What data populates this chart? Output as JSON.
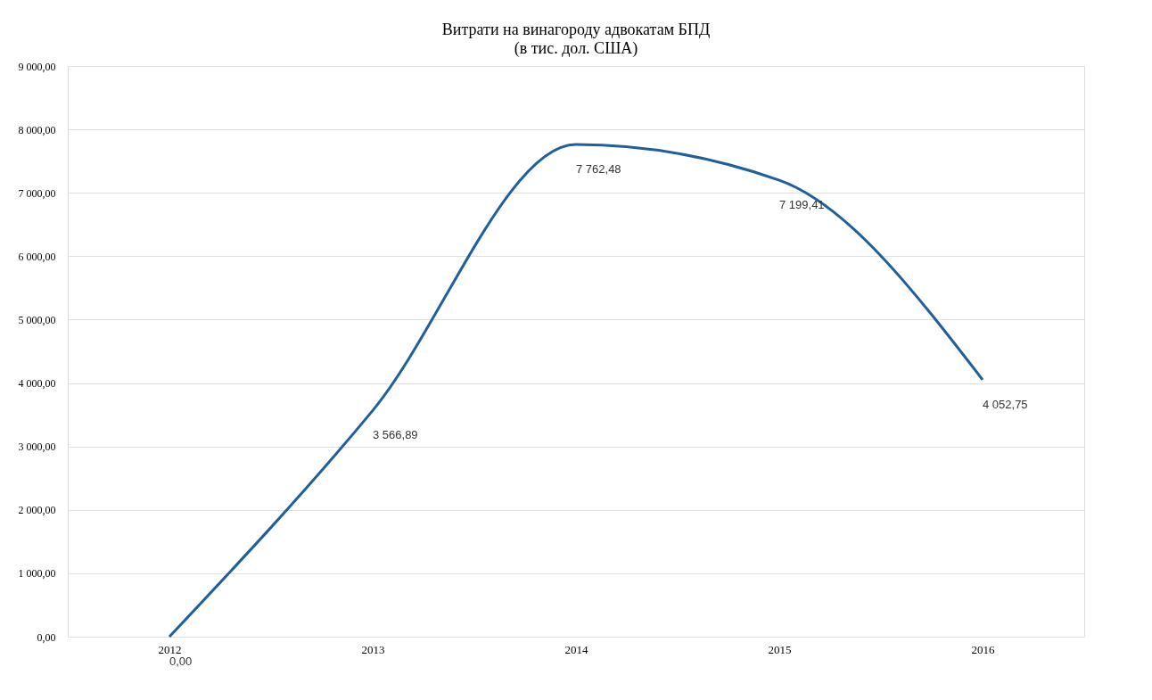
{
  "chart_data": {
    "type": "line",
    "title": "Витрати на винагороду адвокатам БПД",
    "subtitle": "(в тис. дол. США)",
    "categories": [
      "2012",
      "2013",
      "2014",
      "2015",
      "2016"
    ],
    "series": [
      {
        "color": "#1f5f9e",
        "values": [
          0,
          3566.89,
          7762.48,
          7199.41,
          4052.75
        ],
        "value_labels": [
          "0,00",
          "3 566,89",
          "7 762,48",
          "7 199,41",
          "4 052,75"
        ]
      }
    ],
    "ylim": [
      0,
      9000
    ],
    "yticks": [
      {
        "value": 0,
        "label": "0,00"
      },
      {
        "value": 1000,
        "label": "1 000,00"
      },
      {
        "value": 2000,
        "label": "2 000,00"
      },
      {
        "value": 3000,
        "label": "3 000,00"
      },
      {
        "value": 4000,
        "label": "4 000,00"
      },
      {
        "value": 5000,
        "label": "5 000,00"
      },
      {
        "value": 6000,
        "label": "6 000,00"
      },
      {
        "value": 7000,
        "label": "7 000,00"
      },
      {
        "value": 8000,
        "label": "8 000,00"
      },
      {
        "value": 9000,
        "label": "9 000,00"
      }
    ],
    "grid": "y",
    "marker": "none",
    "line_style": "solid"
  }
}
